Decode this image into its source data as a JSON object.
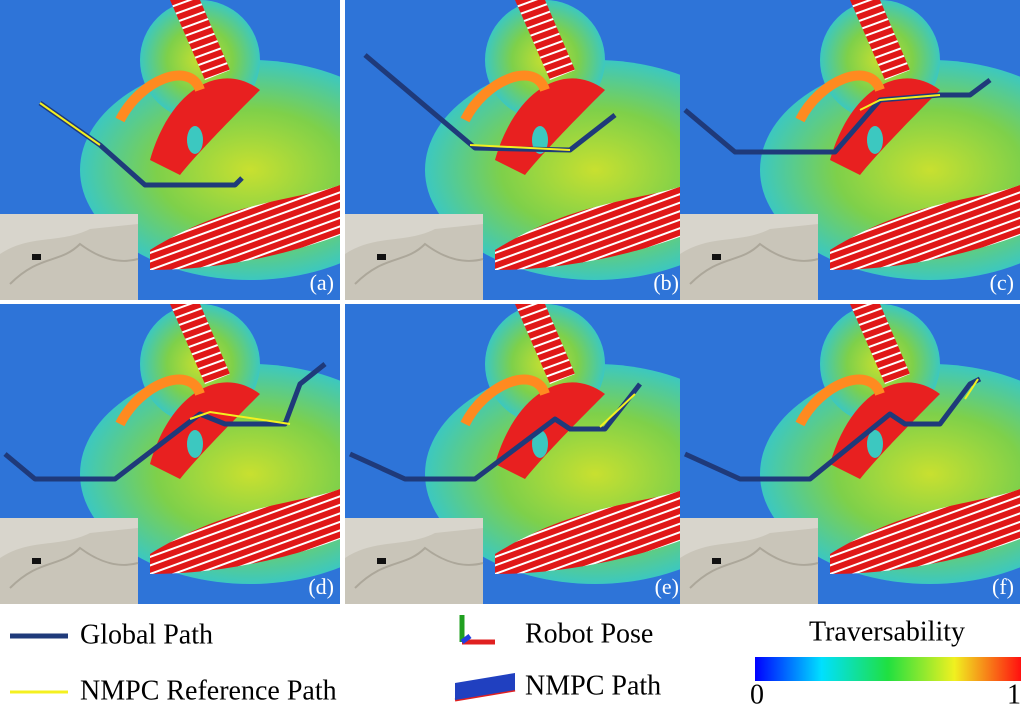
{
  "panels": [
    {
      "label": "(a)"
    },
    {
      "label": "(b)"
    },
    {
      "label": "(c)"
    },
    {
      "label": "(d)"
    },
    {
      "label": "(e)"
    },
    {
      "label": "(f)"
    }
  ],
  "legend": {
    "global_path": "Global Path",
    "reference_path": "NMPC Reference Path",
    "robot_pose": "Robot Pose",
    "nmpc_path": "NMPC Path"
  },
  "colorbar": {
    "title": "Traversability",
    "min": 0,
    "max": 1
  }
}
